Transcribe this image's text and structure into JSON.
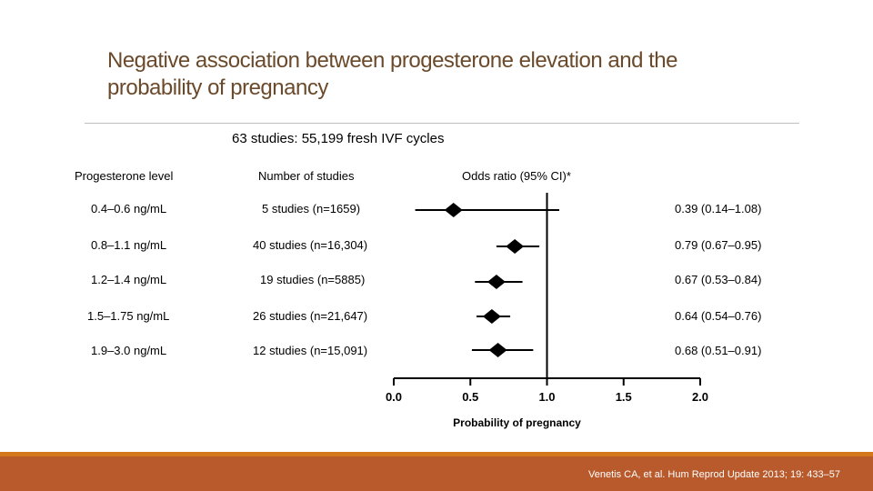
{
  "slide": {
    "title_line1": "Negative association between progesterone elevation and the",
    "title_line2": "probability of pregnancy",
    "subtitle": "63 studies: 55,199 fresh IVF cycles",
    "citation": "Venetis CA, et al. Hum Reprod Update 2013; 19: 433–57"
  },
  "table": {
    "headers": [
      "Progesterone level",
      "Number of studies",
      "Odds ratio (95% CI)*"
    ],
    "rows": [
      {
        "level": "0.4–0.6 ng/mL",
        "studies": "5 studies (n=1659)",
        "or_text": "0.39 (0.14–1.08)"
      },
      {
        "level": "0.8–1.1 ng/mL",
        "studies": "40 studies (n=16,304)",
        "or_text": "0.79 (0.67–0.95)"
      },
      {
        "level": "1.2–1.4 ng/mL",
        "studies": "19 studies (n=5885)",
        "or_text": "0.67 (0.53–0.84)"
      },
      {
        "level": "1.5–1.75 ng/mL",
        "studies": "26 studies (n=21,647)",
        "or_text": "0.64 (0.54–0.76)"
      },
      {
        "level": "1.9–3.0 ng/mL",
        "studies": "12 studies (n=15,091)",
        "or_text": "0.68 (0.51–0.91)"
      }
    ]
  },
  "chart_data": {
    "type": "forest",
    "xlabel": "Probability of pregnancy",
    "xlim": [
      0.0,
      2.0
    ],
    "xticks": [
      "0.0",
      "0.5",
      "1.0",
      "1.5",
      "2.0"
    ],
    "reference_line": 1.0,
    "series": [
      {
        "name": "0.4–0.6 ng/mL",
        "estimate": 0.39,
        "lower": 0.14,
        "upper": 1.08
      },
      {
        "name": "0.8–1.1 ng/mL",
        "estimate": 0.79,
        "lower": 0.67,
        "upper": 0.95
      },
      {
        "name": "1.2–1.4 ng/mL",
        "estimate": 0.67,
        "lower": 0.53,
        "upper": 0.84
      },
      {
        "name": "1.5–1.75 ng/mL",
        "estimate": 0.64,
        "lower": 0.54,
        "upper": 0.76
      },
      {
        "name": "1.9–3.0 ng/mL",
        "estimate": 0.68,
        "lower": 0.51,
        "upper": 0.91
      }
    ]
  }
}
